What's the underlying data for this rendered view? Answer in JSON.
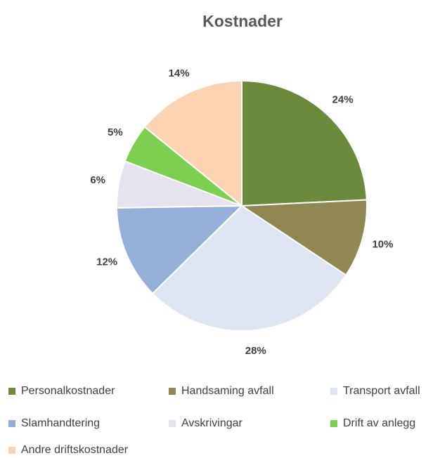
{
  "chart_data": {
    "type": "pie",
    "title": "Kostnader",
    "categories": [
      "Personalkostnader",
      "Handsaming avfall",
      "Transport avfall",
      "Slamhandtering",
      "Avskrivingar",
      "Drift av anlegg",
      "Andre driftskostnader"
    ],
    "values": [
      24,
      10,
      28,
      12,
      6,
      5,
      14
    ],
    "value_labels": [
      "24%",
      "10%",
      "28%",
      "12%",
      "6%",
      "5%",
      "14%"
    ],
    "colors": [
      "#6b8a3c",
      "#908752",
      "#dde4f2",
      "#95b0d8",
      "#e6e2ed",
      "#7dcf52",
      "#fbd3b3"
    ],
    "legend": "bottom"
  }
}
